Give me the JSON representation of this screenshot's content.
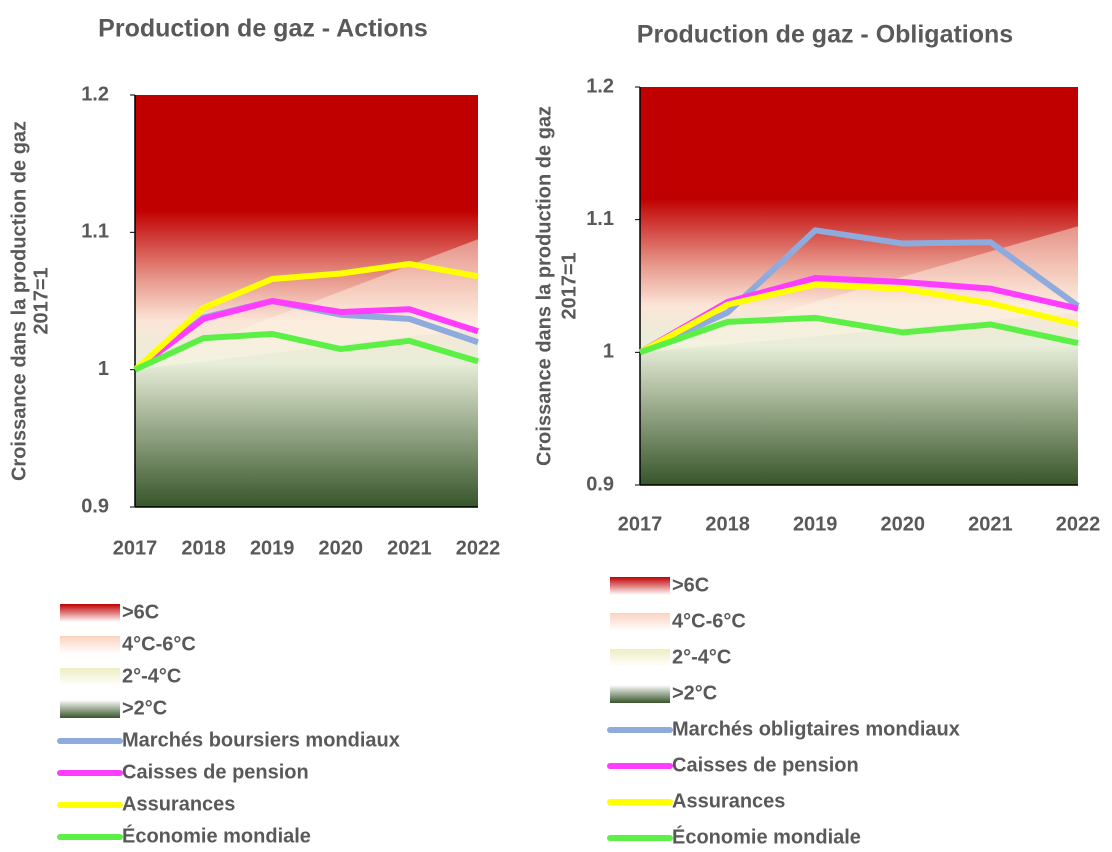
{
  "chart_data": [
    {
      "type": "line",
      "title": "Production de gaz - Actions",
      "ylabel": "Croissance dans la production de gaz",
      "ylabel_sub": "2017=1",
      "categories": [
        "2017",
        "2018",
        "2019",
        "2020",
        "2021",
        "2022"
      ],
      "ylim": [
        0.9,
        1.2
      ],
      "yticks": [
        0.9,
        1,
        1.1,
        1.2
      ],
      "bands": [
        {
          "name": ">6C",
          "color": "#c00000"
        },
        {
          "name": "4°C-6°C",
          "color": "#fbd3bf"
        },
        {
          "name": "2°-4°C",
          "color": "#eeedc4"
        },
        {
          "name": ">2°C",
          "color": "#38552a"
        }
      ],
      "series": [
        {
          "name": "Marchés boursiers mondiaux",
          "color": "#8faadc",
          "values": [
            1.0,
            1.038,
            1.05,
            1.04,
            1.037,
            1.02
          ]
        },
        {
          "name": "Caisses de pension",
          "color": "#ff3dff",
          "values": [
            1.0,
            1.037,
            1.05,
            1.042,
            1.044,
            1.028
          ]
        },
        {
          "name": "Assurances",
          "color": "#ffff00",
          "values": [
            1.0,
            1.045,
            1.066,
            1.07,
            1.077,
            1.068
          ]
        },
        {
          "name": "Économie mondiale",
          "color": "#5cf046",
          "values": [
            1.0,
            1.023,
            1.026,
            1.015,
            1.021,
            1.006
          ]
        }
      ]
    },
    {
      "type": "line",
      "title": "Production de gaz - Obligations",
      "ylabel": "Croissance dans la production de gaz",
      "ylabel_sub": "2017=1",
      "categories": [
        "2017",
        "2018",
        "2019",
        "2020",
        "2021",
        "2022"
      ],
      "ylim": [
        0.9,
        1.2
      ],
      "yticks": [
        0.9,
        1,
        1.1,
        1.2
      ],
      "bands": [
        {
          "name": ">6C",
          "color": "#c00000"
        },
        {
          "name": "4°C-6°C",
          "color": "#fbd3bf"
        },
        {
          "name": "2°-4°C",
          "color": "#eeedc4"
        },
        {
          "name": ">2°C",
          "color": "#38552a"
        }
      ],
      "series": [
        {
          "name": "Marchés obligtaires mondiaux",
          "color": "#8faadc",
          "values": [
            1.0,
            1.03,
            1.092,
            1.082,
            1.083,
            1.035
          ]
        },
        {
          "name": "Caisses de pension",
          "color": "#ff3dff",
          "values": [
            1.0,
            1.038,
            1.056,
            1.053,
            1.048,
            1.033
          ]
        },
        {
          "name": "Assurances",
          "color": "#ffff00",
          "values": [
            1.0,
            1.036,
            1.051,
            1.048,
            1.037,
            1.021
          ]
        },
        {
          "name": "Économie mondiale",
          "color": "#5cf046",
          "values": [
            1.0,
            1.023,
            1.026,
            1.015,
            1.021,
            1.007
          ]
        }
      ]
    }
  ]
}
